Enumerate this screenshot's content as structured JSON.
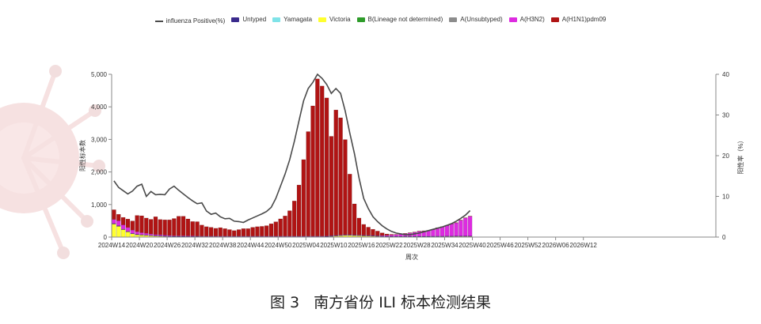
{
  "colors": {
    "positive_line": "#4a4a4a",
    "Untyped": "#3a2a8c",
    "Yamagata": "#7fe3e8",
    "Victoria": "#ffff2e",
    "B_undetermined": "#2e9c2a",
    "A_unsubtyped": "#8c8c8c",
    "H3N2": "#dd2be0",
    "H1N1": "#b01414"
  },
  "legend": [
    {
      "key": "positive_line",
      "label": "influenza Positive(%)",
      "kind": "line"
    },
    {
      "key": "Untyped",
      "label": "Untyped",
      "kind": "box"
    },
    {
      "key": "Yamagata",
      "label": "Yamagata",
      "kind": "box"
    },
    {
      "key": "Victoria",
      "label": "Victoria",
      "kind": "box"
    },
    {
      "key": "B_undetermined",
      "label": "B(Lineage not determined)",
      "kind": "box"
    },
    {
      "key": "A_unsubtyped",
      "label": "A(Unsubtyped)",
      "kind": "box"
    },
    {
      "key": "H3N2",
      "label": "A(H3N2)",
      "kind": "box"
    },
    {
      "key": "H1N1",
      "label": "A(H1N1)pdm09",
      "kind": "box"
    }
  ],
  "caption": {
    "figure": "图 3",
    "text": "南方省份 ILI 标本检测结果"
  },
  "chart_data": {
    "type": "bar",
    "stacked": true,
    "x_start": "2024W14",
    "x_ticks": [
      "2024W14",
      "2024W20",
      "2024W26",
      "2024W32",
      "2024W38",
      "2024W44",
      "2024W50",
      "2025W04",
      "2025W10",
      "2025W16",
      "2025W22",
      "2025W28",
      "2025W34",
      "2025W40",
      "2025W46",
      "2025W52",
      "2026W06",
      "2026W12"
    ],
    "ylabel": "阳性标本数",
    "ylabel_right": "阳性率（%）",
    "xlabel": "周次",
    "ylim": [
      0,
      5000
    ],
    "y_ticks": [
      0,
      1000,
      2000,
      3000,
      4000,
      5000
    ],
    "y_tick_labels": [
      "0",
      "1,000",
      "2,000",
      "3,000",
      "4,000",
      "5,000"
    ],
    "ylim_right": [
      0,
      40
    ],
    "y_ticks_right": [
      0,
      10,
      20,
      30,
      40
    ],
    "series": [
      {
        "name": "Victoria",
        "key": "Victoria",
        "values": [
          400,
          330,
          230,
          160,
          100,
          70,
          60,
          50,
          40,
          30,
          25,
          20,
          15,
          10,
          10,
          10,
          8,
          8,
          8,
          5,
          5,
          5,
          5,
          5,
          5,
          5,
          5,
          5,
          5,
          5,
          5,
          5,
          5,
          5,
          5,
          5,
          5,
          5,
          5,
          5,
          5,
          5,
          5,
          5,
          5,
          5,
          10,
          20,
          30,
          40,
          50,
          50,
          45,
          40,
          35,
          30,
          25,
          20,
          15,
          10,
          10,
          10,
          10,
          10,
          10,
          10,
          10,
          10,
          12,
          14,
          15,
          16,
          18,
          18,
          20,
          20,
          20,
          20
        ]
      },
      {
        "name": "Untyped",
        "key": "Untyped",
        "values": [
          20,
          20,
          15,
          15,
          15,
          15,
          15,
          15,
          15,
          15,
          15,
          15,
          15,
          15,
          15,
          15,
          15,
          15,
          15,
          15,
          15,
          15,
          15,
          15,
          15,
          15,
          15,
          15,
          15,
          15,
          15,
          15,
          15,
          15,
          15,
          15,
          15,
          15,
          15,
          15,
          15,
          15,
          15,
          15,
          15,
          15,
          15,
          15,
          15,
          15,
          15,
          15,
          15,
          15,
          15,
          15,
          15,
          15,
          15,
          15,
          15,
          15,
          15,
          15,
          15,
          15,
          15,
          15,
          15,
          15,
          15,
          15,
          15,
          15,
          15,
          15,
          15,
          15
        ]
      },
      {
        "name": "A(H3N2)",
        "key": "H3N2",
        "values": [
          120,
          150,
          130,
          120,
          100,
          80,
          60,
          50,
          40,
          30,
          30,
          25,
          20,
          15,
          15,
          15,
          15,
          15,
          10,
          10,
          10,
          10,
          10,
          10,
          10,
          10,
          10,
          10,
          10,
          10,
          10,
          10,
          10,
          10,
          10,
          10,
          10,
          10,
          10,
          10,
          10,
          10,
          10,
          10,
          10,
          10,
          10,
          10,
          10,
          10,
          10,
          10,
          10,
          10,
          10,
          10,
          10,
          10,
          20,
          30,
          40,
          50,
          60,
          80,
          100,
          120,
          150,
          160,
          170,
          200,
          250,
          280,
          320,
          370,
          400,
          480,
          550,
          600
        ]
      },
      {
        "name": "A(H1N1)pdm09",
        "key": "H1N1",
        "values": [
          300,
          200,
          230,
          260,
          280,
          500,
          520,
          470,
          450,
          550,
          470,
          470,
          480,
          530,
          600,
          600,
          520,
          440,
          440,
          340,
          290,
          270,
          240,
          260,
          230,
          200,
          170,
          200,
          230,
          230,
          270,
          290,
          300,
          320,
          380,
          440,
          530,
          620,
          780,
          1080,
          1570,
          2350,
          3210,
          4000,
          4830,
          4610,
          4240,
          3050,
          3850,
          3600,
          2920,
          1860,
          950,
          520,
          330,
          250,
          190,
          140,
          80,
          40,
          20,
          10,
          10,
          10,
          10,
          10,
          10,
          10,
          10,
          10,
          10,
          10,
          10,
          10,
          10,
          10,
          10,
          10
        ]
      }
    ],
    "line": {
      "name": "influenza Positive(%)",
      "key": "positive_line",
      "values": [
        13.8,
        12.2,
        11.4,
        10.6,
        11.3,
        12.5,
        13.0,
        10.0,
        11.2,
        10.4,
        10.5,
        10.4,
        11.8,
        12.5,
        11.5,
        10.6,
        9.7,
        8.9,
        8.2,
        8.4,
        6.4,
        5.6,
        5.9,
        5.0,
        4.5,
        4.6,
        3.9,
        3.8,
        3.6,
        4.2,
        4.7,
        5.2,
        5.7,
        6.3,
        7.3,
        9.5,
        12.5,
        15.5,
        19.0,
        23.5,
        28.5,
        33.5,
        36.5,
        38.0,
        40.0,
        39.0,
        37.5,
        35.3,
        36.5,
        35.3,
        31.0,
        25.5,
        20.5,
        14.5,
        9.5,
        7.0,
        5.0,
        3.8,
        2.8,
        2.0,
        1.4,
        1.0,
        0.8,
        0.6,
        0.6,
        0.8,
        1.0,
        1.3,
        1.6,
        1.9,
        2.2,
        2.5,
        2.9,
        3.3,
        3.9,
        4.6,
        5.4,
        6.5
      ]
    }
  }
}
